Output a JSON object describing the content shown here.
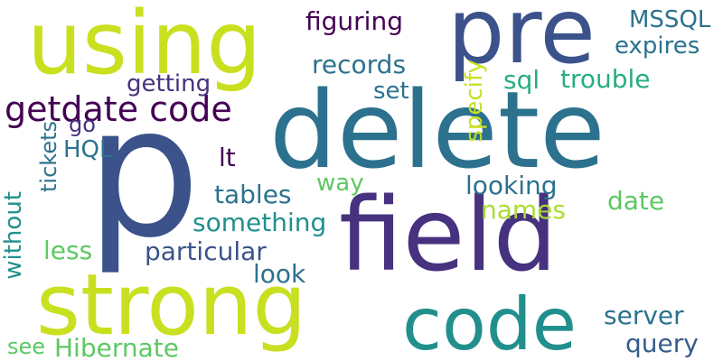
{
  "words": {
    "p": "p",
    "delete": "delete",
    "field": "field",
    "pre": "pre",
    "using": "using",
    "strong": "strong",
    "code": "code",
    "getdate_code": "getdate code",
    "figuring": "figuring",
    "mssql": "MSSQL",
    "expires": "expires",
    "records": "records",
    "getting": "getting",
    "set": "set",
    "sql": "sql",
    "trouble": "trouble",
    "specify": "specify",
    "tickets": "tickets",
    "go": "go",
    "hql": "HQL",
    "lt": "lt",
    "way": "way",
    "looking": "looking",
    "tables": "tables",
    "date": "date",
    "names": "names",
    "without": "without",
    "something": "something",
    "less": "less",
    "particular": "particular",
    "look": "look",
    "server": "server",
    "query": "query",
    "see": "see",
    "hibernate": "Hibernate"
  },
  "colors": {
    "dark_purple": "#440154",
    "purple": "#46327e",
    "indigo": "#3b528b",
    "blue": "#365c8d",
    "steel_blue": "#2c728e",
    "teal": "#21908d",
    "green_teal": "#27ad81",
    "green": "#5dc863",
    "lime": "#aadc32",
    "yellow_green": "#c8e020"
  }
}
